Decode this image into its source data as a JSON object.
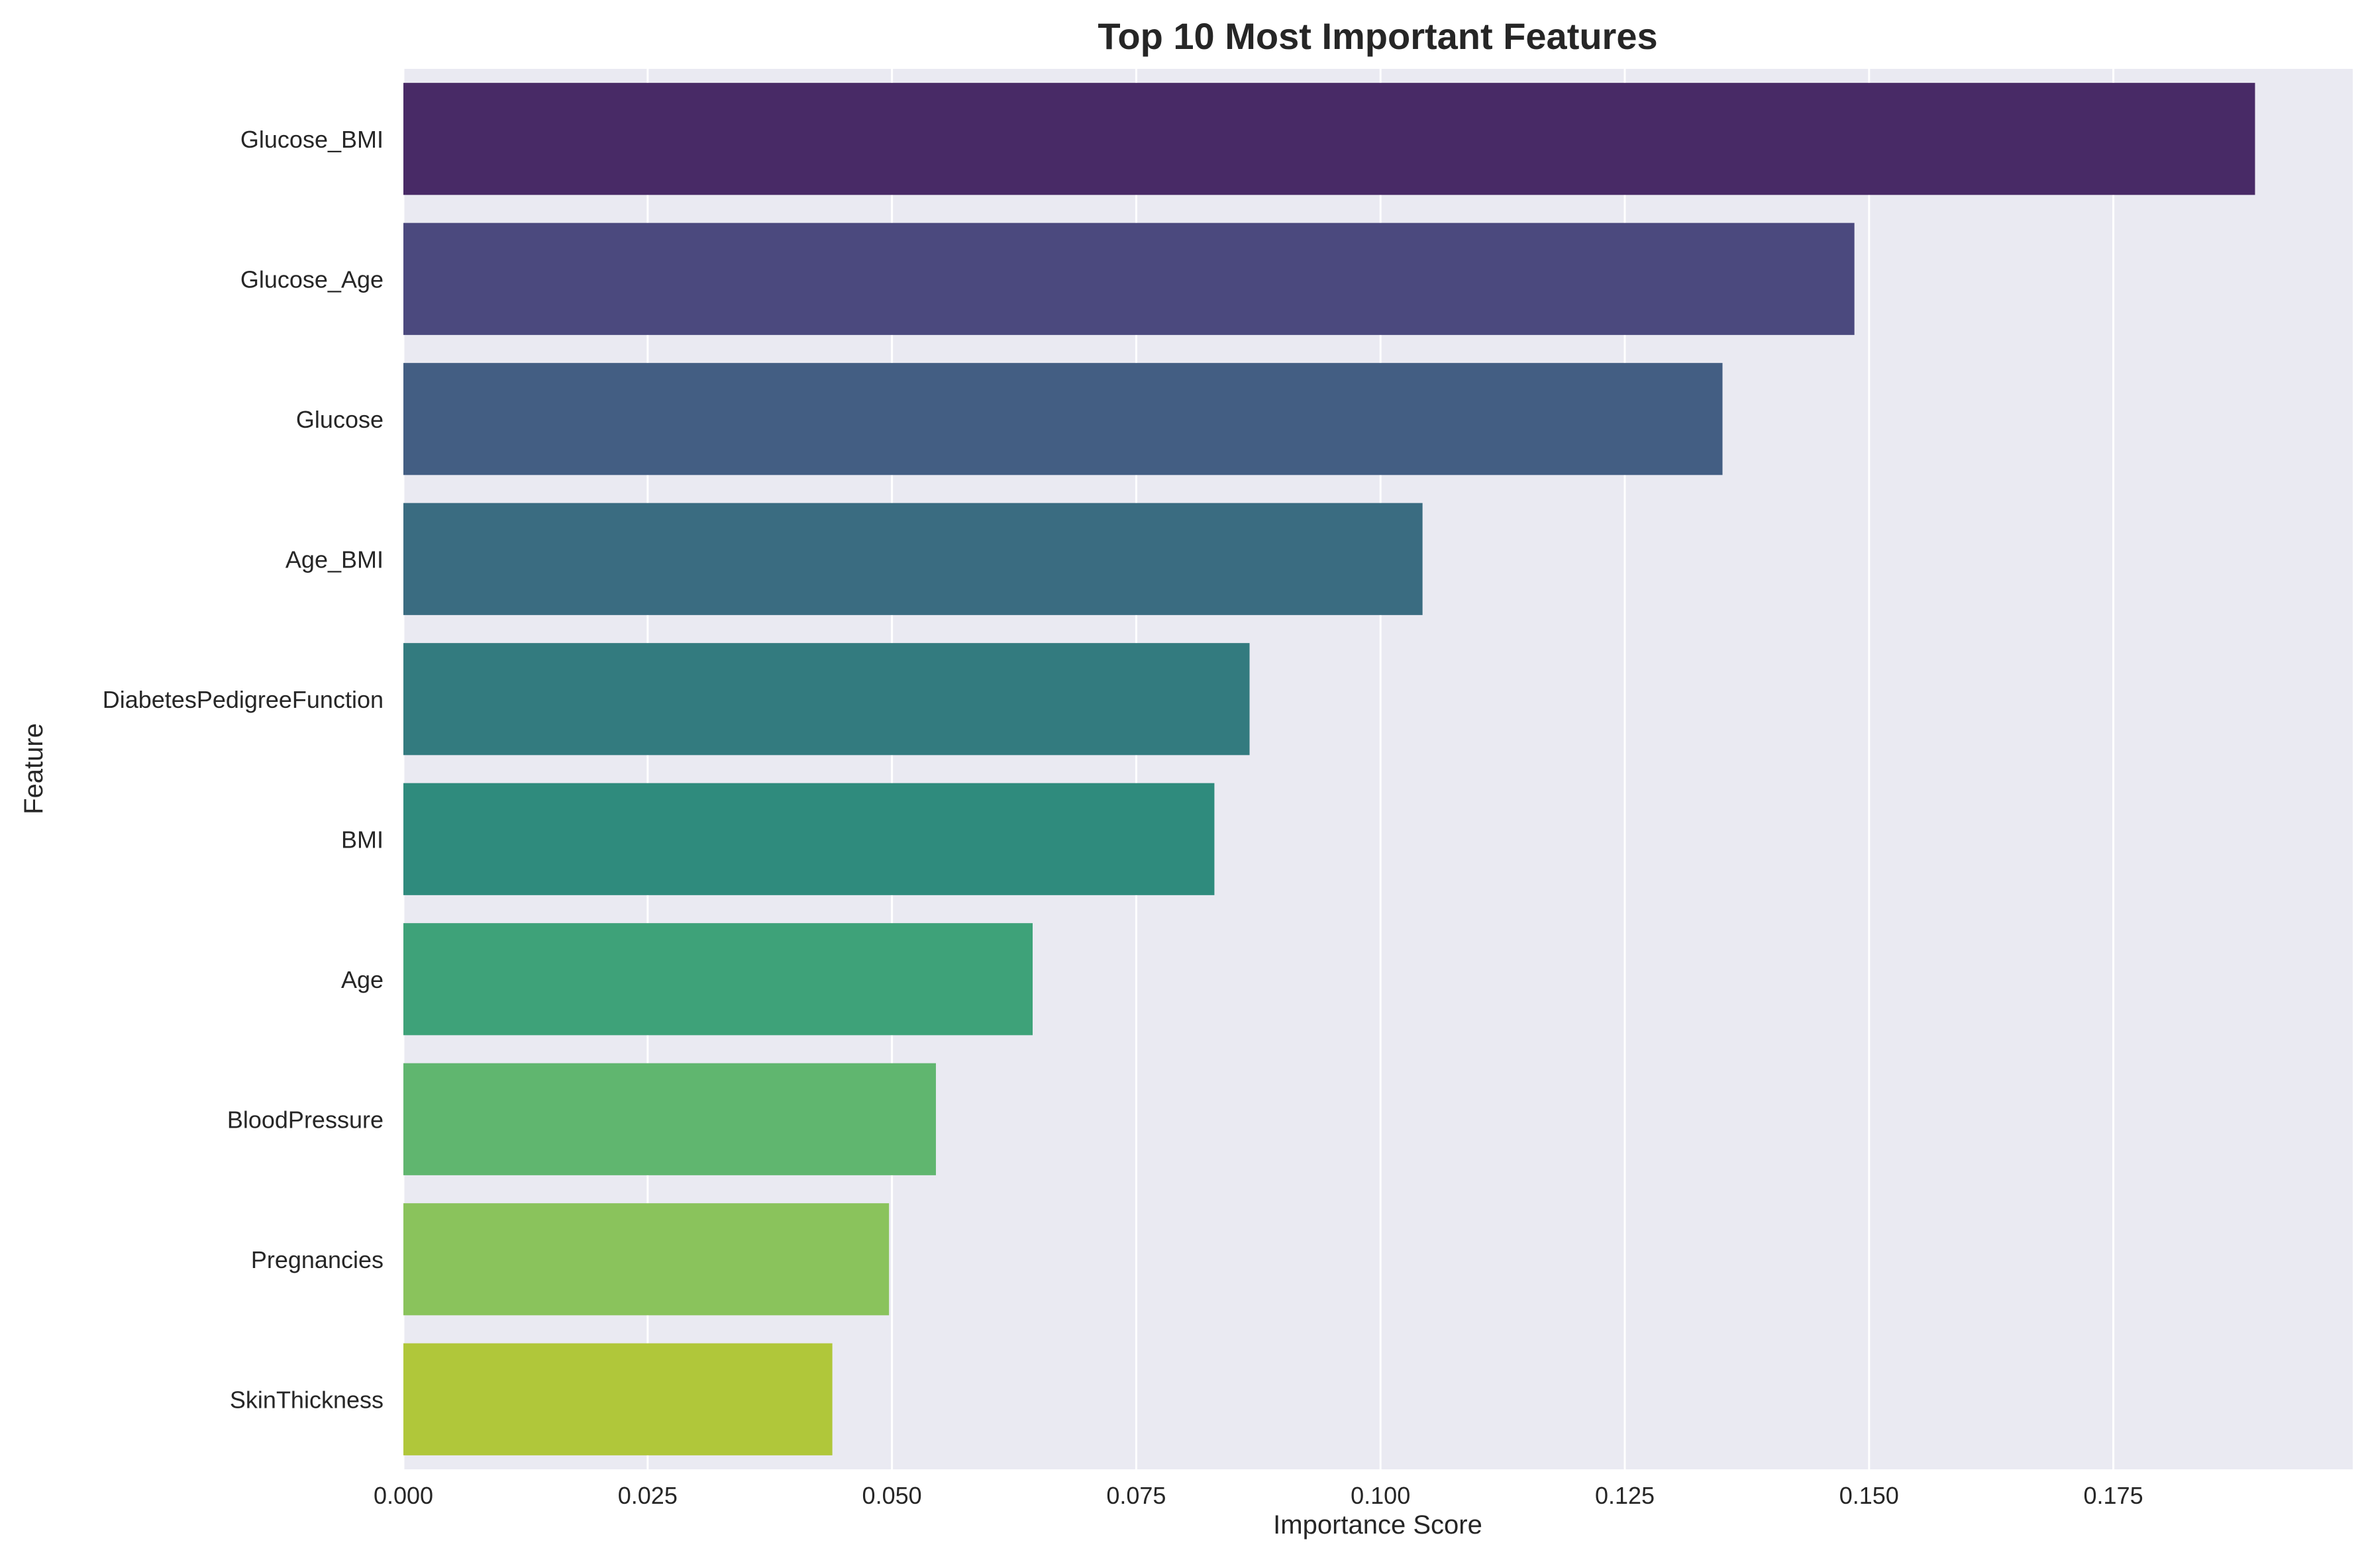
{
  "chart_data": {
    "type": "bar",
    "orientation": "horizontal",
    "title": "Top 10 Most Important Features",
    "xlabel": "Importance Score",
    "ylabel": "Feature",
    "xlim": [
      0,
      0.1995
    ],
    "xticks": [
      0.0,
      0.025,
      0.05,
      0.075,
      0.1,
      0.125,
      0.15,
      0.175
    ],
    "xtick_labels": [
      "0.000",
      "0.025",
      "0.050",
      "0.075",
      "0.100",
      "0.125",
      "0.150",
      "0.175"
    ],
    "grid": true,
    "background": "#eaeaf2",
    "categories": [
      "Glucose_BMI",
      "Glucose_Age",
      "Glucose",
      "Age_BMI",
      "DiabetesPedigreeFunction",
      "BMI",
      "Age",
      "BloodPressure",
      "Pregnancies",
      "SkinThickness"
    ],
    "values": [
      0.1895,
      0.1485,
      0.135,
      0.1043,
      0.0866,
      0.083,
      0.0644,
      0.0545,
      0.0497,
      0.0439
    ],
    "colors": [
      "#482a66",
      "#4b497e",
      "#435e83",
      "#3a6c81",
      "#337b7f",
      "#2f8b7d",
      "#3ea279",
      "#60b66f",
      "#8ac35c",
      "#b0c73a"
    ]
  }
}
